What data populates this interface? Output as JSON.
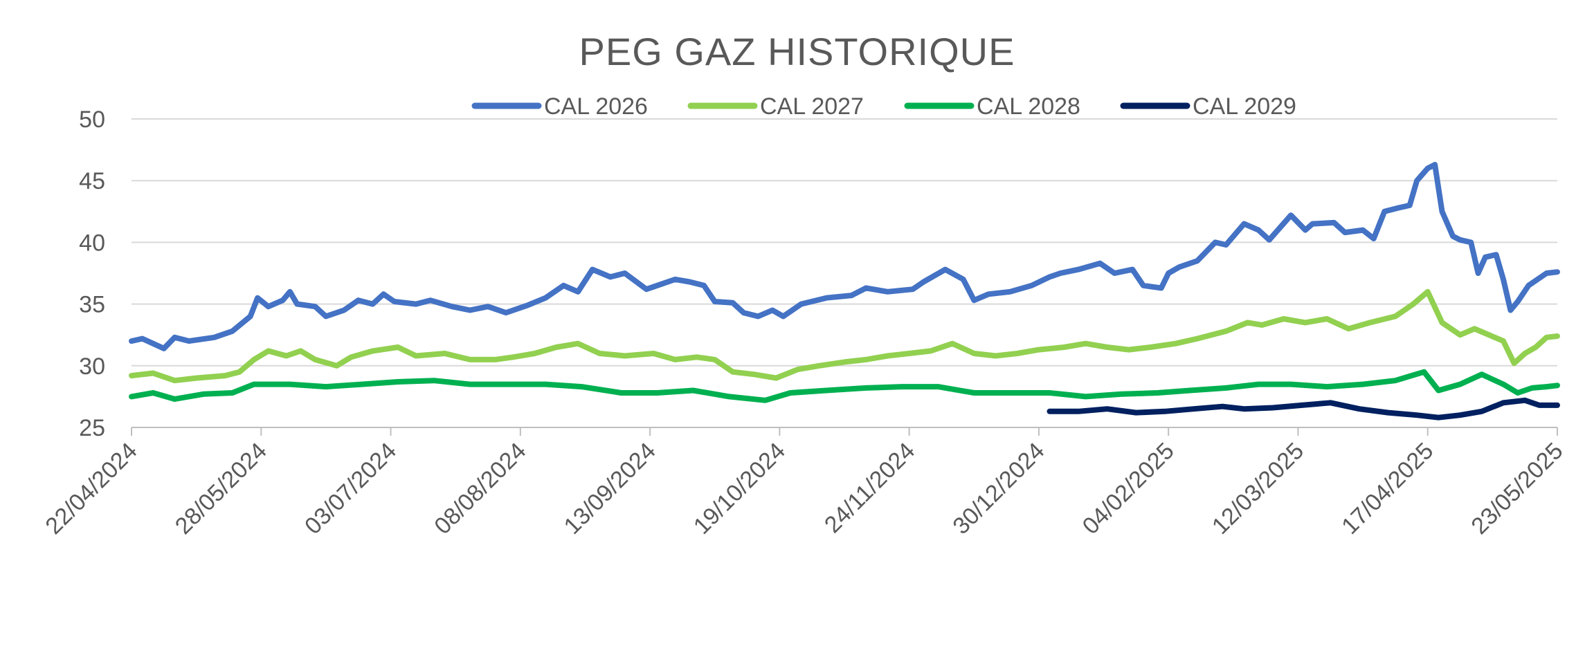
{
  "chart_data": {
    "type": "line",
    "title": "PEG GAZ HISTORIQUE",
    "xlabel": "",
    "ylabel": "",
    "ylim": [
      25,
      50
    ],
    "y_ticks": [
      "50",
      "45",
      "40",
      "35",
      "30",
      "25"
    ],
    "x_range": [
      "2024-04-22",
      "2025-05-23"
    ],
    "x_ticks": [
      "22/04/2024",
      "28/05/2024",
      "03/07/2024",
      "08/08/2024",
      "13/09/2024",
      "19/10/2024",
      "24/11/2024",
      "30/12/2024",
      "04/02/2025",
      "12/03/2025",
      "17/04/2025",
      "23/05/2025"
    ],
    "grid": "horizontal",
    "legend_position": "top",
    "series": [
      {
        "name": "CAL 2026",
        "color": "#4472C4",
        "points": [
          [
            "2024-04-22",
            32.0
          ],
          [
            "2024-04-25",
            32.2
          ],
          [
            "2024-05-01",
            31.4
          ],
          [
            "2024-05-04",
            32.3
          ],
          [
            "2024-05-08",
            32.0
          ],
          [
            "2024-05-15",
            32.3
          ],
          [
            "2024-05-20",
            32.8
          ],
          [
            "2024-05-25",
            34.0
          ],
          [
            "2024-05-27",
            35.5
          ],
          [
            "2024-05-30",
            34.8
          ],
          [
            "2024-06-03",
            35.3
          ],
          [
            "2024-06-05",
            36.0
          ],
          [
            "2024-06-07",
            35.0
          ],
          [
            "2024-06-12",
            34.8
          ],
          [
            "2024-06-15",
            34.0
          ],
          [
            "2024-06-20",
            34.5
          ],
          [
            "2024-06-24",
            35.3
          ],
          [
            "2024-06-28",
            35.0
          ],
          [
            "2024-07-01",
            35.8
          ],
          [
            "2024-07-04",
            35.2
          ],
          [
            "2024-07-10",
            35.0
          ],
          [
            "2024-07-14",
            35.3
          ],
          [
            "2024-07-20",
            34.8
          ],
          [
            "2024-07-25",
            34.5
          ],
          [
            "2024-07-30",
            34.8
          ],
          [
            "2024-08-04",
            34.3
          ],
          [
            "2024-08-10",
            34.9
          ],
          [
            "2024-08-15",
            35.5
          ],
          [
            "2024-08-20",
            36.5
          ],
          [
            "2024-08-24",
            36.0
          ],
          [
            "2024-08-28",
            37.8
          ],
          [
            "2024-09-02",
            37.2
          ],
          [
            "2024-09-06",
            37.5
          ],
          [
            "2024-09-12",
            36.2
          ],
          [
            "2024-09-15",
            36.5
          ],
          [
            "2024-09-20",
            37.0
          ],
          [
            "2024-09-24",
            36.8
          ],
          [
            "2024-09-28",
            36.5
          ],
          [
            "2024-10-01",
            35.2
          ],
          [
            "2024-10-06",
            35.1
          ],
          [
            "2024-10-09",
            34.3
          ],
          [
            "2024-10-13",
            34.0
          ],
          [
            "2024-10-17",
            34.5
          ],
          [
            "2024-10-20",
            34.0
          ],
          [
            "2024-10-25",
            35.0
          ],
          [
            "2024-11-01",
            35.5
          ],
          [
            "2024-11-08",
            35.7
          ],
          [
            "2024-11-12",
            36.3
          ],
          [
            "2024-11-18",
            36.0
          ],
          [
            "2024-11-25",
            36.2
          ],
          [
            "2024-11-28",
            36.8
          ],
          [
            "2024-12-04",
            37.8
          ],
          [
            "2024-12-09",
            37.0
          ],
          [
            "2024-12-12",
            35.3
          ],
          [
            "2024-12-16",
            35.8
          ],
          [
            "2024-12-22",
            36.0
          ],
          [
            "2024-12-28",
            36.5
          ],
          [
            "2025-01-02",
            37.2
          ],
          [
            "2025-01-05",
            37.5
          ],
          [
            "2025-01-10",
            37.8
          ],
          [
            "2025-01-16",
            38.3
          ],
          [
            "2025-01-20",
            37.5
          ],
          [
            "2025-01-25",
            37.8
          ],
          [
            "2025-01-28",
            36.5
          ],
          [
            "2025-02-02",
            36.3
          ],
          [
            "2025-02-04",
            37.5
          ],
          [
            "2025-02-07",
            38.0
          ],
          [
            "2025-02-12",
            38.5
          ],
          [
            "2025-02-17",
            40.0
          ],
          [
            "2025-02-20",
            39.8
          ],
          [
            "2025-02-25",
            41.5
          ],
          [
            "2025-03-01",
            41.0
          ],
          [
            "2025-03-04",
            40.2
          ],
          [
            "2025-03-10",
            42.2
          ],
          [
            "2025-03-14",
            41.0
          ],
          [
            "2025-03-16",
            41.5
          ],
          [
            "2025-03-22",
            41.6
          ],
          [
            "2025-03-25",
            40.8
          ],
          [
            "2025-03-30",
            41.0
          ],
          [
            "2025-04-02",
            40.3
          ],
          [
            "2025-04-05",
            42.5
          ],
          [
            "2025-04-09",
            42.8
          ],
          [
            "2025-04-12",
            43.0
          ],
          [
            "2025-04-14",
            45.0
          ],
          [
            "2025-04-17",
            46.0
          ],
          [
            "2025-04-19",
            46.3
          ],
          [
            "2025-04-21",
            42.5
          ],
          [
            "2025-04-24",
            40.5
          ],
          [
            "2025-04-26",
            40.2
          ],
          [
            "2025-04-29",
            40.0
          ],
          [
            "2025-05-01",
            37.5
          ],
          [
            "2025-05-03",
            38.8
          ],
          [
            "2025-05-06",
            39.0
          ],
          [
            "2025-05-08",
            37.0
          ],
          [
            "2025-05-10",
            34.5
          ],
          [
            "2025-05-12",
            35.2
          ],
          [
            "2025-05-15",
            36.5
          ],
          [
            "2025-05-20",
            37.5
          ],
          [
            "2025-05-23",
            37.6
          ]
        ]
      },
      {
        "name": "CAL 2027",
        "color": "#92D050",
        "points": [
          [
            "2024-04-22",
            29.2
          ],
          [
            "2024-04-28",
            29.4
          ],
          [
            "2024-05-04",
            28.8
          ],
          [
            "2024-05-10",
            29.0
          ],
          [
            "2024-05-18",
            29.2
          ],
          [
            "2024-05-22",
            29.5
          ],
          [
            "2024-05-26",
            30.5
          ],
          [
            "2024-05-30",
            31.2
          ],
          [
            "2024-06-04",
            30.8
          ],
          [
            "2024-06-08",
            31.2
          ],
          [
            "2024-06-12",
            30.5
          ],
          [
            "2024-06-18",
            30.0
          ],
          [
            "2024-06-22",
            30.7
          ],
          [
            "2024-06-28",
            31.2
          ],
          [
            "2024-07-05",
            31.5
          ],
          [
            "2024-07-10",
            30.8
          ],
          [
            "2024-07-18",
            31.0
          ],
          [
            "2024-07-25",
            30.5
          ],
          [
            "2024-08-01",
            30.5
          ],
          [
            "2024-08-06",
            30.7
          ],
          [
            "2024-08-12",
            31.0
          ],
          [
            "2024-08-18",
            31.5
          ],
          [
            "2024-08-24",
            31.8
          ],
          [
            "2024-08-30",
            31.0
          ],
          [
            "2024-09-06",
            30.8
          ],
          [
            "2024-09-14",
            31.0
          ],
          [
            "2024-09-20",
            30.5
          ],
          [
            "2024-09-26",
            30.7
          ],
          [
            "2024-10-01",
            30.5
          ],
          [
            "2024-10-06",
            29.5
          ],
          [
            "2024-10-12",
            29.3
          ],
          [
            "2024-10-18",
            29.0
          ],
          [
            "2024-10-24",
            29.7
          ],
          [
            "2024-10-30",
            30.0
          ],
          [
            "2024-11-06",
            30.3
          ],
          [
            "2024-11-12",
            30.5
          ],
          [
            "2024-11-18",
            30.8
          ],
          [
            "2024-11-24",
            31.0
          ],
          [
            "2024-11-30",
            31.2
          ],
          [
            "2024-12-06",
            31.8
          ],
          [
            "2024-12-12",
            31.0
          ],
          [
            "2024-12-18",
            30.8
          ],
          [
            "2024-12-24",
            31.0
          ],
          [
            "2024-12-30",
            31.3
          ],
          [
            "2025-01-06",
            31.5
          ],
          [
            "2025-01-12",
            31.8
          ],
          [
            "2025-01-18",
            31.5
          ],
          [
            "2025-01-24",
            31.3
          ],
          [
            "2025-01-30",
            31.5
          ],
          [
            "2025-02-06",
            31.8
          ],
          [
            "2025-02-12",
            32.2
          ],
          [
            "2025-02-20",
            32.8
          ],
          [
            "2025-02-26",
            33.5
          ],
          [
            "2025-03-02",
            33.3
          ],
          [
            "2025-03-08",
            33.8
          ],
          [
            "2025-03-14",
            33.5
          ],
          [
            "2025-03-20",
            33.8
          ],
          [
            "2025-03-26",
            33.0
          ],
          [
            "2025-04-01",
            33.5
          ],
          [
            "2025-04-08",
            34.0
          ],
          [
            "2025-04-13",
            35.0
          ],
          [
            "2025-04-17",
            36.0
          ],
          [
            "2025-04-21",
            33.5
          ],
          [
            "2025-04-26",
            32.5
          ],
          [
            "2025-04-30",
            33.0
          ],
          [
            "2025-05-04",
            32.5
          ],
          [
            "2025-05-08",
            32.0
          ],
          [
            "2025-05-11",
            30.2
          ],
          [
            "2025-05-14",
            31.0
          ],
          [
            "2025-05-17",
            31.5
          ],
          [
            "2025-05-20",
            32.3
          ],
          [
            "2025-05-23",
            32.4
          ]
        ]
      },
      {
        "name": "CAL 2028",
        "color": "#00B050",
        "points": [
          [
            "2024-04-22",
            27.5
          ],
          [
            "2024-04-28",
            27.8
          ],
          [
            "2024-05-04",
            27.3
          ],
          [
            "2024-05-12",
            27.7
          ],
          [
            "2024-05-20",
            27.8
          ],
          [
            "2024-05-26",
            28.5
          ],
          [
            "2024-06-05",
            28.5
          ],
          [
            "2024-06-15",
            28.3
          ],
          [
            "2024-06-25",
            28.5
          ],
          [
            "2024-07-05",
            28.7
          ],
          [
            "2024-07-15",
            28.8
          ],
          [
            "2024-07-25",
            28.5
          ],
          [
            "2024-08-05",
            28.5
          ],
          [
            "2024-08-15",
            28.5
          ],
          [
            "2024-08-25",
            28.3
          ],
          [
            "2024-09-05",
            27.8
          ],
          [
            "2024-09-15",
            27.8
          ],
          [
            "2024-09-25",
            28.0
          ],
          [
            "2024-10-05",
            27.5
          ],
          [
            "2024-10-15",
            27.2
          ],
          [
            "2024-10-22",
            27.8
          ],
          [
            "2024-11-01",
            28.0
          ],
          [
            "2024-11-12",
            28.2
          ],
          [
            "2024-11-22",
            28.3
          ],
          [
            "2024-12-02",
            28.3
          ],
          [
            "2024-12-12",
            27.8
          ],
          [
            "2024-12-22",
            27.8
          ],
          [
            "2025-01-02",
            27.8
          ],
          [
            "2025-01-12",
            27.5
          ],
          [
            "2025-01-22",
            27.7
          ],
          [
            "2025-02-01",
            27.8
          ],
          [
            "2025-02-10",
            28.0
          ],
          [
            "2025-02-20",
            28.2
          ],
          [
            "2025-03-01",
            28.5
          ],
          [
            "2025-03-10",
            28.5
          ],
          [
            "2025-03-20",
            28.3
          ],
          [
            "2025-03-30",
            28.5
          ],
          [
            "2025-04-08",
            28.8
          ],
          [
            "2025-04-16",
            29.5
          ],
          [
            "2025-04-20",
            28.0
          ],
          [
            "2025-04-26",
            28.5
          ],
          [
            "2025-05-02",
            29.3
          ],
          [
            "2025-05-08",
            28.5
          ],
          [
            "2025-05-12",
            27.8
          ],
          [
            "2025-05-16",
            28.2
          ],
          [
            "2025-05-20",
            28.3
          ],
          [
            "2025-05-23",
            28.4
          ]
        ]
      },
      {
        "name": "CAL 2029",
        "color": "#002060",
        "points": [
          [
            "2025-01-02",
            26.3
          ],
          [
            "2025-01-10",
            26.3
          ],
          [
            "2025-01-18",
            26.5
          ],
          [
            "2025-01-26",
            26.2
          ],
          [
            "2025-02-03",
            26.3
          ],
          [
            "2025-02-11",
            26.5
          ],
          [
            "2025-02-19",
            26.7
          ],
          [
            "2025-02-25",
            26.5
          ],
          [
            "2025-03-05",
            26.6
          ],
          [
            "2025-03-13",
            26.8
          ],
          [
            "2025-03-21",
            27.0
          ],
          [
            "2025-03-29",
            26.5
          ],
          [
            "2025-04-06",
            26.2
          ],
          [
            "2025-04-14",
            26.0
          ],
          [
            "2025-04-20",
            25.8
          ],
          [
            "2025-04-26",
            26.0
          ],
          [
            "2025-05-02",
            26.3
          ],
          [
            "2025-05-08",
            27.0
          ],
          [
            "2025-05-14",
            27.2
          ],
          [
            "2025-05-18",
            26.8
          ],
          [
            "2025-05-23",
            26.8
          ]
        ]
      }
    ]
  }
}
